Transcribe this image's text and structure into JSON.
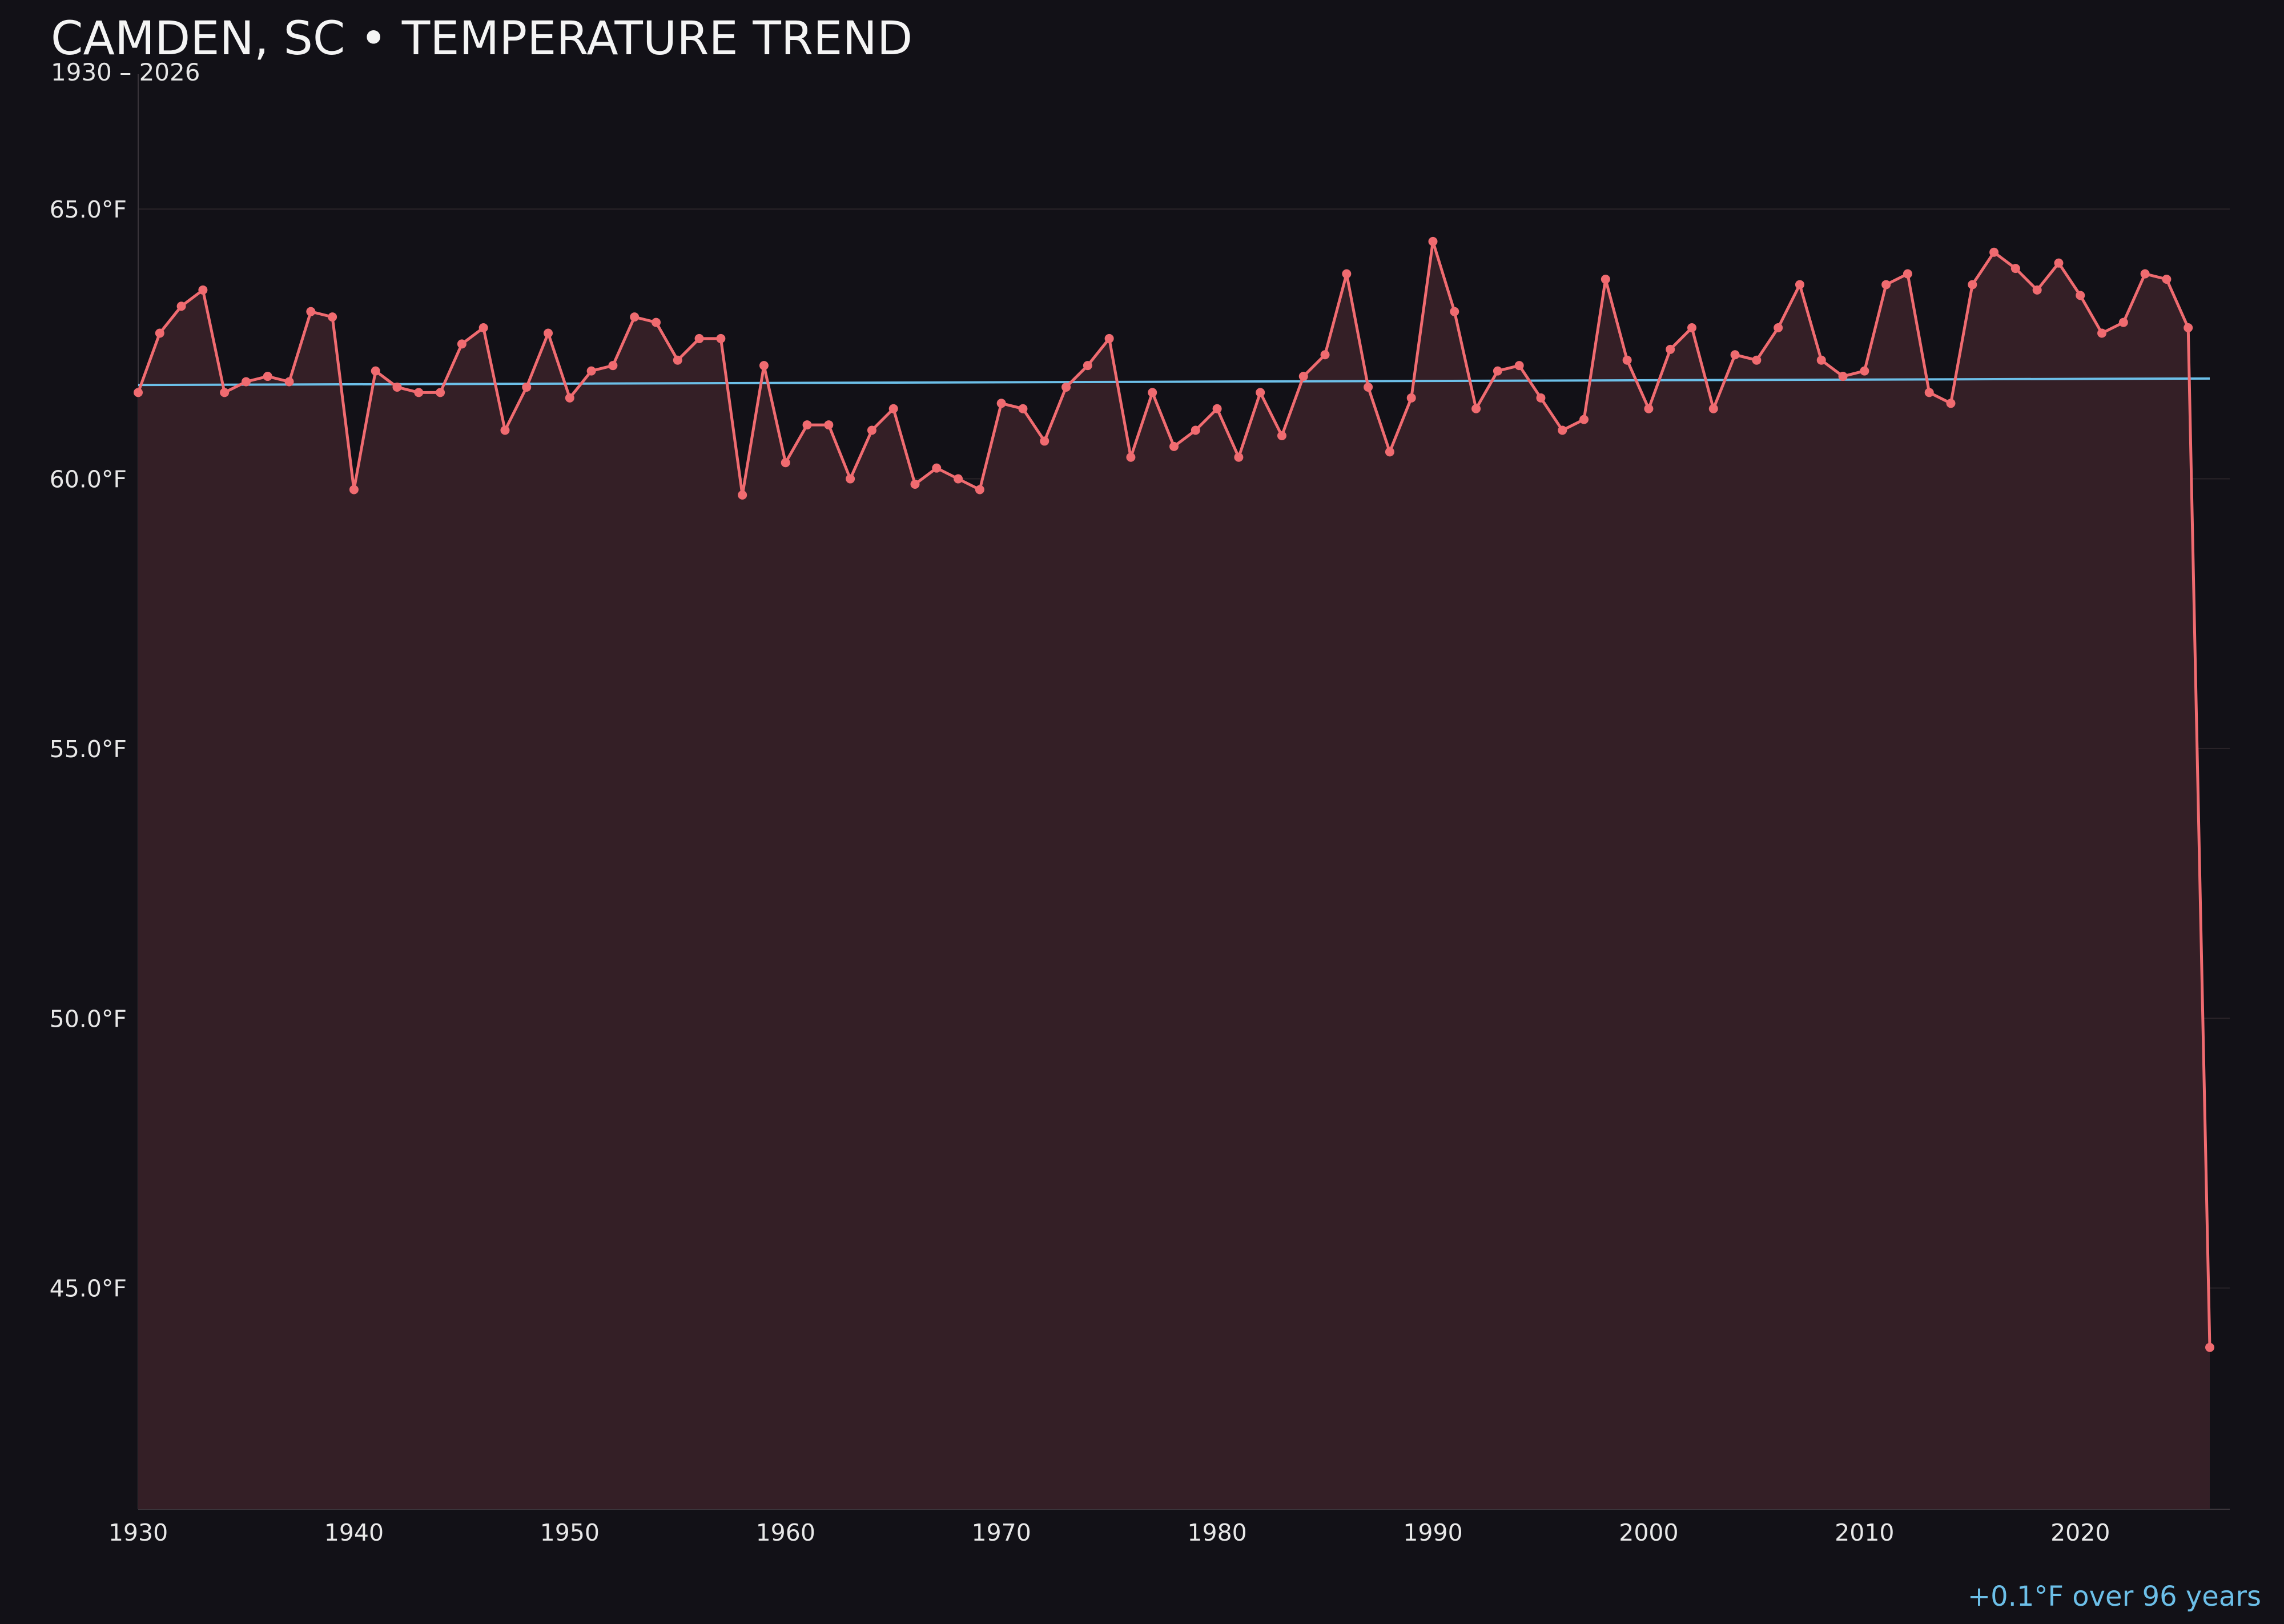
{
  "header": {
    "title": "CAMDEN, SC • TEMPERATURE TREND",
    "subtitle": "1930 – 2026"
  },
  "footer": {
    "trend_label": "+0.1°F over 96 years"
  },
  "colors": {
    "background": "#121117",
    "line": "#f06b70",
    "fill": "#341f26",
    "trend": "#6cbfe8",
    "grid": "#2a2429",
    "text": "#e8e8e8"
  },
  "chart_data": {
    "type": "line",
    "xlim": [
      1930,
      2026
    ],
    "ylim": [
      40.9,
      67.5
    ],
    "x_ticks": [
      1930,
      1940,
      1950,
      1960,
      1970,
      1980,
      1990,
      2000,
      2010,
      2020
    ],
    "x_tick_labels": [
      "1930",
      "1940",
      "1950",
      "1960",
      "1970",
      "1980",
      "1990",
      "2000",
      "2010",
      "2020"
    ],
    "y_ticks": [
      45,
      50,
      55,
      60,
      65
    ],
    "y_tick_labels": [
      "45.0°F",
      "50.0°F",
      "55.0°F",
      "60.0°F",
      "65.0°F"
    ],
    "grid": true,
    "area_fill": true,
    "series": [
      {
        "x": [
          1930,
          1931,
          1932,
          1933,
          1934,
          1935,
          1936,
          1937,
          1938,
          1939,
          1940,
          1941,
          1942,
          1943,
          1944,
          1945,
          1946,
          1947,
          1948,
          1949,
          1950,
          1951,
          1952,
          1953,
          1954,
          1955,
          1956,
          1957,
          1958,
          1959,
          1960,
          1961,
          1962,
          1963,
          1964,
          1965,
          1966,
          1967,
          1968,
          1969,
          1970,
          1971,
          1972,
          1973,
          1974,
          1975,
          1976,
          1977,
          1978,
          1979,
          1980,
          1981,
          1982,
          1983,
          1984,
          1985,
          1986,
          1987,
          1988,
          1989,
          1990,
          1991,
          1992,
          1993,
          1994,
          1995,
          1996,
          1997,
          1998,
          1999,
          2000,
          2001,
          2002,
          2003,
          2004,
          2005,
          2006,
          2007,
          2008,
          2009,
          2010,
          2011,
          2012,
          2013,
          2014,
          2015,
          2016,
          2017,
          2018,
          2019,
          2020,
          2021,
          2022,
          2023,
          2024,
          2025,
          2026
        ],
        "values": [
          61.6,
          62.7,
          63.2,
          63.5,
          61.6,
          61.8,
          61.9,
          61.8,
          63.1,
          63.0,
          59.8,
          62.0,
          61.7,
          61.6,
          61.6,
          62.5,
          62.8,
          60.9,
          61.7,
          62.7,
          61.5,
          62.0,
          62.1,
          63.0,
          62.9,
          62.2,
          62.6,
          62.6,
          59.7,
          62.1,
          60.3,
          61.0,
          61.0,
          60.0,
          60.9,
          61.3,
          59.9,
          60.2,
          60.0,
          59.8,
          61.4,
          61.3,
          60.7,
          61.7,
          62.1,
          62.6,
          60.4,
          61.6,
          60.6,
          60.9,
          61.3,
          60.4,
          61.6,
          60.8,
          61.9,
          62.3,
          63.8,
          61.7,
          60.5,
          61.5,
          64.4,
          63.1,
          61.3,
          62.0,
          62.1,
          61.5,
          60.9,
          61.1,
          63.7,
          62.2,
          61.3,
          62.4,
          62.8,
          61.3,
          62.3,
          62.2,
          62.8,
          63.6,
          62.2,
          61.9,
          62.0,
          63.6,
          63.8,
          61.6,
          61.4,
          63.6,
          64.2,
          63.9,
          63.5,
          64.0,
          63.4,
          62.7,
          62.9,
          63.8,
          63.7,
          62.8,
          43.9
        ]
      }
    ],
    "trend_line": {
      "x": [
        1930,
        2026
      ],
      "values": [
        61.74,
        61.86
      ]
    }
  }
}
